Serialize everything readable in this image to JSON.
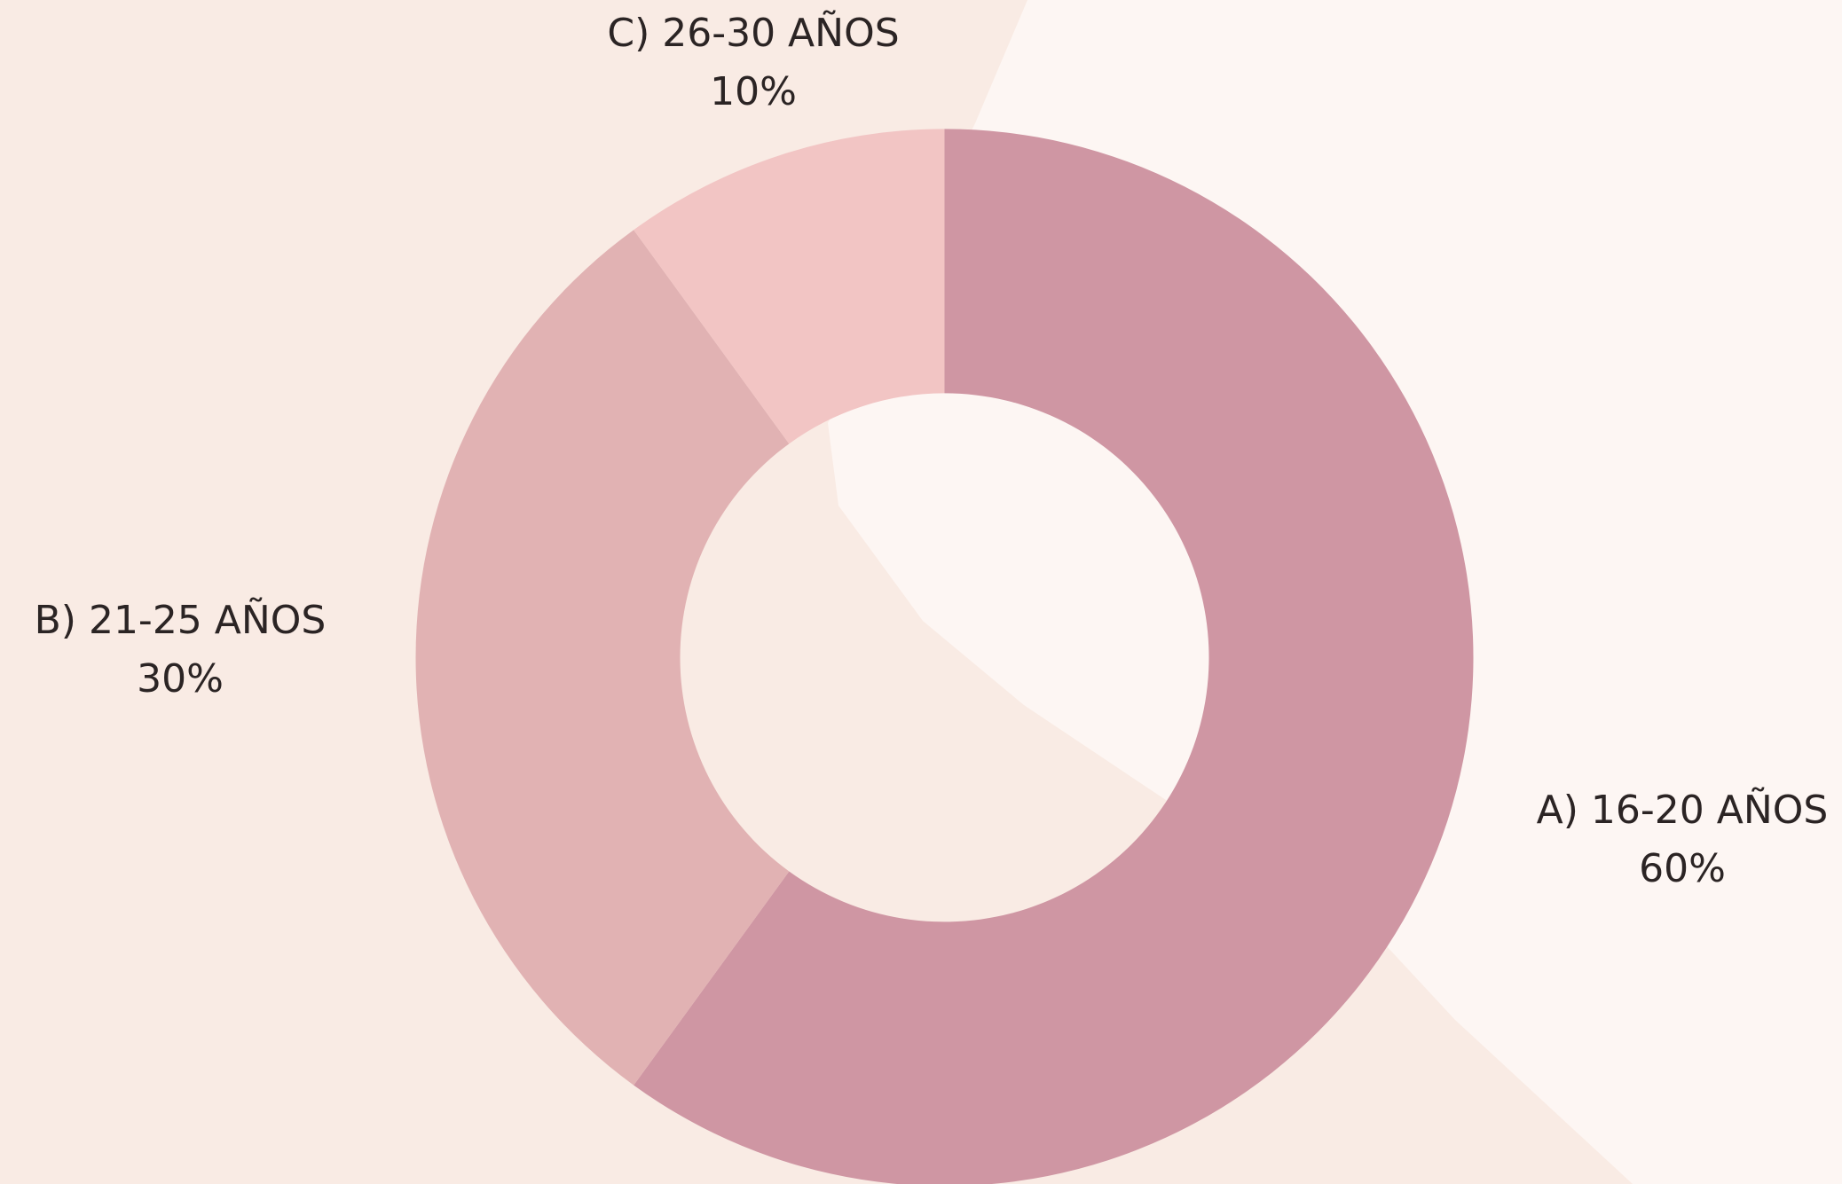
{
  "chart_data": {
    "type": "pie",
    "categories": [
      "A) 16-20 AÑOS",
      "B) 21-25 AÑOS",
      "C) 26-30 AÑOS"
    ],
    "values": [
      60,
      30,
      10
    ],
    "value_labels": [
      "60%",
      "30%",
      "10%"
    ],
    "colors": [
      "#cf96a3",
      "#e1b2b3",
      "#f2c5c4"
    ]
  }
}
